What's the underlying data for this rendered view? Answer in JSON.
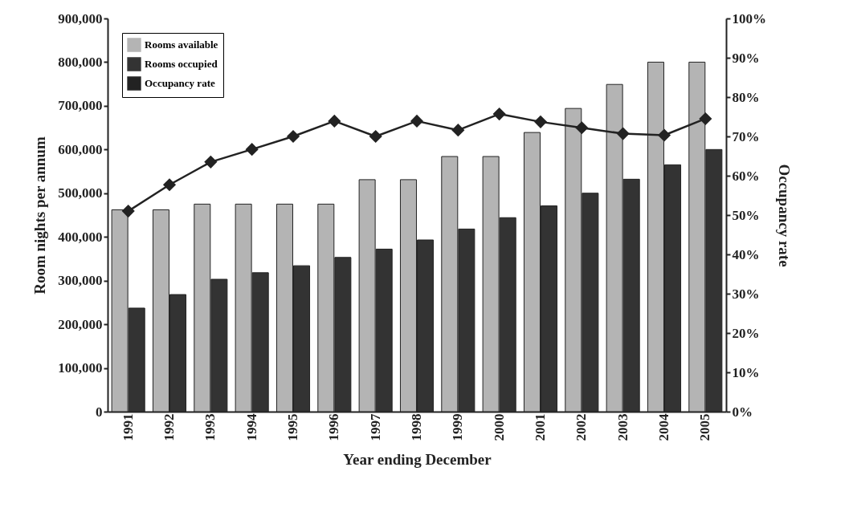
{
  "chart_data": {
    "type": "bar",
    "xlabel": "Year ending December",
    "ylabel": "Room nights per annum",
    "y2label": "Occupancy rate",
    "categories": [
      "1991",
      "1992",
      "1993",
      "1994",
      "1995",
      "1996",
      "1997",
      "1998",
      "1999",
      "2000",
      "2001",
      "2002",
      "2003",
      "2004",
      "2005"
    ],
    "series": [
      {
        "name": "Rooms available",
        "color": "#b4b4b4",
        "values": [
          462000,
          462000,
          475000,
          475000,
          475000,
          475000,
          531000,
          531000,
          584000,
          584000,
          639000,
          694000,
          749000,
          800000,
          800000
        ]
      },
      {
        "name": "Rooms occupied",
        "color": "#333333",
        "values": [
          237000,
          268000,
          303000,
          318000,
          334000,
          353000,
          372000,
          393000,
          418000,
          444000,
          471000,
          500000,
          532000,
          565000,
          600000
        ]
      },
      {
        "name": "Occupancy rate",
        "type": "line",
        "axis": "y2",
        "color": "#222222",
        "marker": "diamond",
        "values": [
          51.0,
          57.7,
          63.5,
          66.7,
          70.0,
          73.9,
          70.0,
          73.9,
          71.6,
          75.7,
          73.7,
          72.2,
          70.7,
          70.3,
          74.5
        ]
      }
    ],
    "ylim": [
      0,
      900000
    ],
    "yticks": [
      0,
      {
        "value": 100000,
        "label": "100,000"
      },
      {
        "value": 200000,
        "label": "200,000"
      },
      {
        "value": 300000,
        "label": "300,000"
      },
      {
        "value": 400000,
        "label": "400,000"
      },
      {
        "value": 500000,
        "label": "500,000"
      },
      {
        "value": 600000,
        "label": "600,000"
      },
      {
        "value": 700000,
        "label": "700,000"
      },
      {
        "value": 800000,
        "label": "800,000"
      },
      {
        "value": 900000,
        "label": "900,000"
      }
    ],
    "y2lim": [
      0,
      100
    ],
    "y2ticks": [
      {
        "value": 0,
        "label": "0%"
      },
      {
        "value": 10,
        "label": "10%"
      },
      {
        "value": 20,
        "label": "20%"
      },
      {
        "value": 30,
        "label": "30%"
      },
      {
        "value": 40,
        "label": "40%"
      },
      {
        "value": 50,
        "label": "50%"
      },
      {
        "value": 60,
        "label": "60%"
      },
      {
        "value": 70,
        "label": "70%"
      },
      {
        "value": 80,
        "label": "80%"
      },
      {
        "value": 90,
        "label": "90%"
      },
      {
        "value": 100,
        "label": "100%"
      }
    ],
    "grid": false,
    "legend": "top left"
  }
}
